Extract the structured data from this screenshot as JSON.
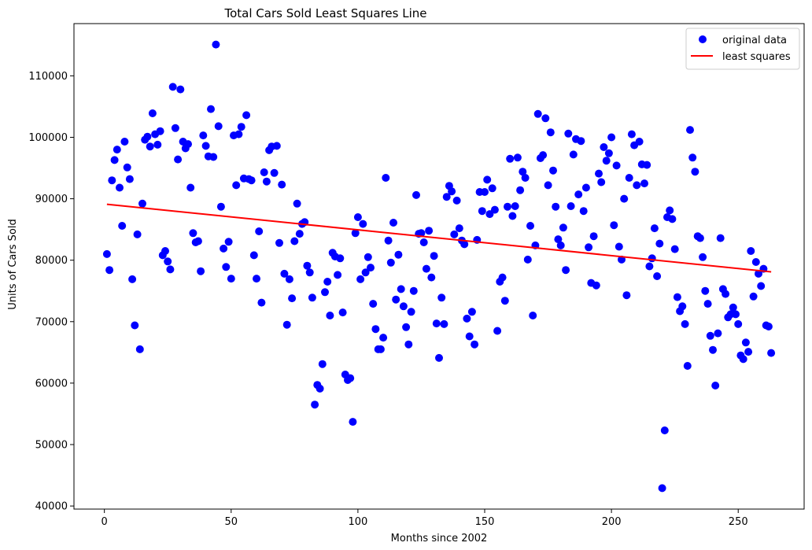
{
  "chart_data": {
    "type": "scatter",
    "title": "Total Cars Sold Least Squares Line",
    "xlabel": "Months since 2002",
    "ylabel": "Units of Cars Sold",
    "xlim": [
      -12,
      276
    ],
    "ylim": [
      39500,
      118500
    ],
    "xticks": [
      0,
      50,
      100,
      150,
      200,
      250
    ],
    "yticks": [
      40000,
      50000,
      60000,
      70000,
      80000,
      90000,
      100000,
      110000
    ],
    "grid": false,
    "legend_position": "top-right",
    "colors": {
      "points": "#0000ff",
      "line": "#ff0000"
    },
    "series": [
      {
        "name": "original data",
        "kind": "scatter",
        "x": [
          1,
          2,
          3,
          4,
          5,
          6,
          7,
          8,
          9,
          10,
          11,
          12,
          13,
          14,
          15,
          16,
          17,
          18,
          19,
          20,
          21,
          22,
          23,
          24,
          25,
          26,
          27,
          28,
          29,
          30,
          31,
          32,
          33,
          34,
          35,
          36,
          37,
          38,
          39,
          40,
          41,
          42,
          43,
          44,
          45,
          46,
          47,
          48,
          49,
          50,
          51,
          52,
          53,
          54,
          55,
          56,
          57,
          58,
          59,
          60,
          61,
          62,
          63,
          64,
          65,
          66,
          67,
          68,
          69,
          70,
          71,
          72,
          73,
          74,
          75,
          76,
          77,
          78,
          79,
          80,
          81,
          82,
          83,
          84,
          85,
          86,
          87,
          88,
          89,
          90,
          91,
          92,
          93,
          94,
          95,
          96,
          97,
          98,
          99,
          100,
          101,
          102,
          103,
          104,
          105,
          106,
          107,
          108,
          109,
          110,
          111,
          112,
          113,
          114,
          115,
          116,
          117,
          118,
          119,
          120,
          121,
          122,
          123,
          124,
          125,
          126,
          127,
          128,
          129,
          130,
          131,
          132,
          133,
          134,
          135,
          136,
          137,
          138,
          139,
          140,
          141,
          142,
          143,
          144,
          145,
          146,
          147,
          148,
          149,
          150,
          151,
          152,
          153,
          154,
          155,
          156,
          157,
          158,
          159,
          160,
          161,
          162,
          163,
          164,
          165,
          166,
          167,
          168,
          169,
          170,
          171,
          172,
          173,
          174,
          175,
          176,
          177,
          178,
          179,
          180,
          181,
          182,
          183,
          184,
          185,
          186,
          187,
          188,
          189,
          190,
          191,
          192,
          193,
          194,
          195,
          196,
          197,
          198,
          199,
          200,
          201,
          202,
          203,
          204,
          205,
          206,
          207,
          208,
          209,
          210,
          211,
          212,
          213,
          214,
          215,
          216,
          217,
          218,
          219,
          220,
          221,
          222,
          223,
          224,
          225,
          226,
          227,
          228,
          229,
          230,
          231,
          232,
          233,
          234,
          235,
          236,
          237,
          238,
          239,
          240,
          241,
          242,
          243,
          244,
          245,
          246,
          247,
          248,
          249,
          250,
          251,
          252,
          253,
          254,
          255,
          256,
          257,
          258,
          259,
          260,
          261,
          262,
          263
        ],
        "y": [
          81000,
          78400,
          93000,
          96300,
          98000,
          91800,
          85600,
          99300,
          95100,
          93200,
          76900,
          69400,
          84200,
          65500,
          89200,
          99600,
          100100,
          98500,
          103900,
          100500,
          98800,
          101000,
          80800,
          81500,
          79800,
          78500,
          108200,
          101500,
          96400,
          107800,
          99300,
          98200,
          98900,
          91800,
          84400,
          82900,
          83100,
          78200,
          100300,
          98600,
          96900,
          104600,
          96800,
          115100,
          101800,
          88700,
          81900,
          78900,
          83000,
          77000,
          100300,
          92200,
          100500,
          101700,
          93300,
          103600,
          93200,
          93000,
          80800,
          77000,
          84700,
          73100,
          94300,
          92800,
          97900,
          98500,
          94200,
          98600,
          82800,
          92300,
          77800,
          69500,
          76900,
          73800,
          83100,
          89200,
          84300,
          85900,
          86200,
          79100,
          78000,
          73900,
          56500,
          59700,
          59100,
          63100,
          74800,
          76500,
          71000,
          81200,
          80600,
          77600,
          80300,
          71500,
          61400,
          60500,
          60800,
          53700,
          84400,
          87000,
          76900,
          85900,
          78000,
          80500,
          78800,
          72900,
          68800,
          65500,
          65500,
          67400,
          93400,
          83200,
          79600,
          86100,
          73600,
          80900,
          75300,
          72500,
          69100,
          66300,
          71600,
          75000,
          90600,
          84300,
          84400,
          82900,
          78600,
          84800,
          77200,
          80700,
          69700,
          64100,
          73900,
          69600,
          90300,
          92100,
          91200,
          84200,
          89700,
          85200,
          83200,
          82600,
          70500,
          67600,
          71600,
          66300,
          83300,
          91100,
          88000,
          91100,
          93100,
          87500,
          91700,
          88200,
          68500,
          76500,
          77200,
          73400,
          88700,
          96500,
          87200,
          88800,
          96700,
          91400,
          94400,
          93400,
          80100,
          85600,
          71000,
          82400,
          103800,
          96600,
          97100,
          103100,
          92200,
          100800,
          94600,
          88700,
          83400,
          82400,
          85300,
          78400,
          100600,
          88800,
          97200,
          99700,
          90700,
          99400,
          88000,
          91800,
          82100,
          76300,
          83900,
          75900,
          94100,
          92700,
          98400,
          96200,
          97400,
          100000,
          85700,
          95400,
          82200,
          80100,
          90000,
          74300,
          93400,
          100500,
          98700,
          92200,
          99300,
          95600,
          92500,
          95500,
          79000,
          80300,
          85200,
          77400,
          82700,
          42900,
          52300,
          87000,
          88100,
          86700,
          81800,
          74000,
          71700,
          72500,
          69600,
          62800,
          101200,
          96700,
          94400,
          83900,
          83600,
          80500,
          75000,
          72900,
          67700,
          65400,
          59600,
          68100,
          83600,
          75300,
          74500,
          70700,
          71200,
          72300,
          71200,
          69600,
          64500,
          63900,
          66600,
          65100,
          81500,
          74100,
          79700,
          77800,
          75800,
          78600,
          69400,
          69200,
          64900
        ]
      },
      {
        "name": "least squares",
        "kind": "line",
        "x": [
          1,
          263
        ],
        "y": [
          89100,
          78100
        ]
      }
    ]
  }
}
